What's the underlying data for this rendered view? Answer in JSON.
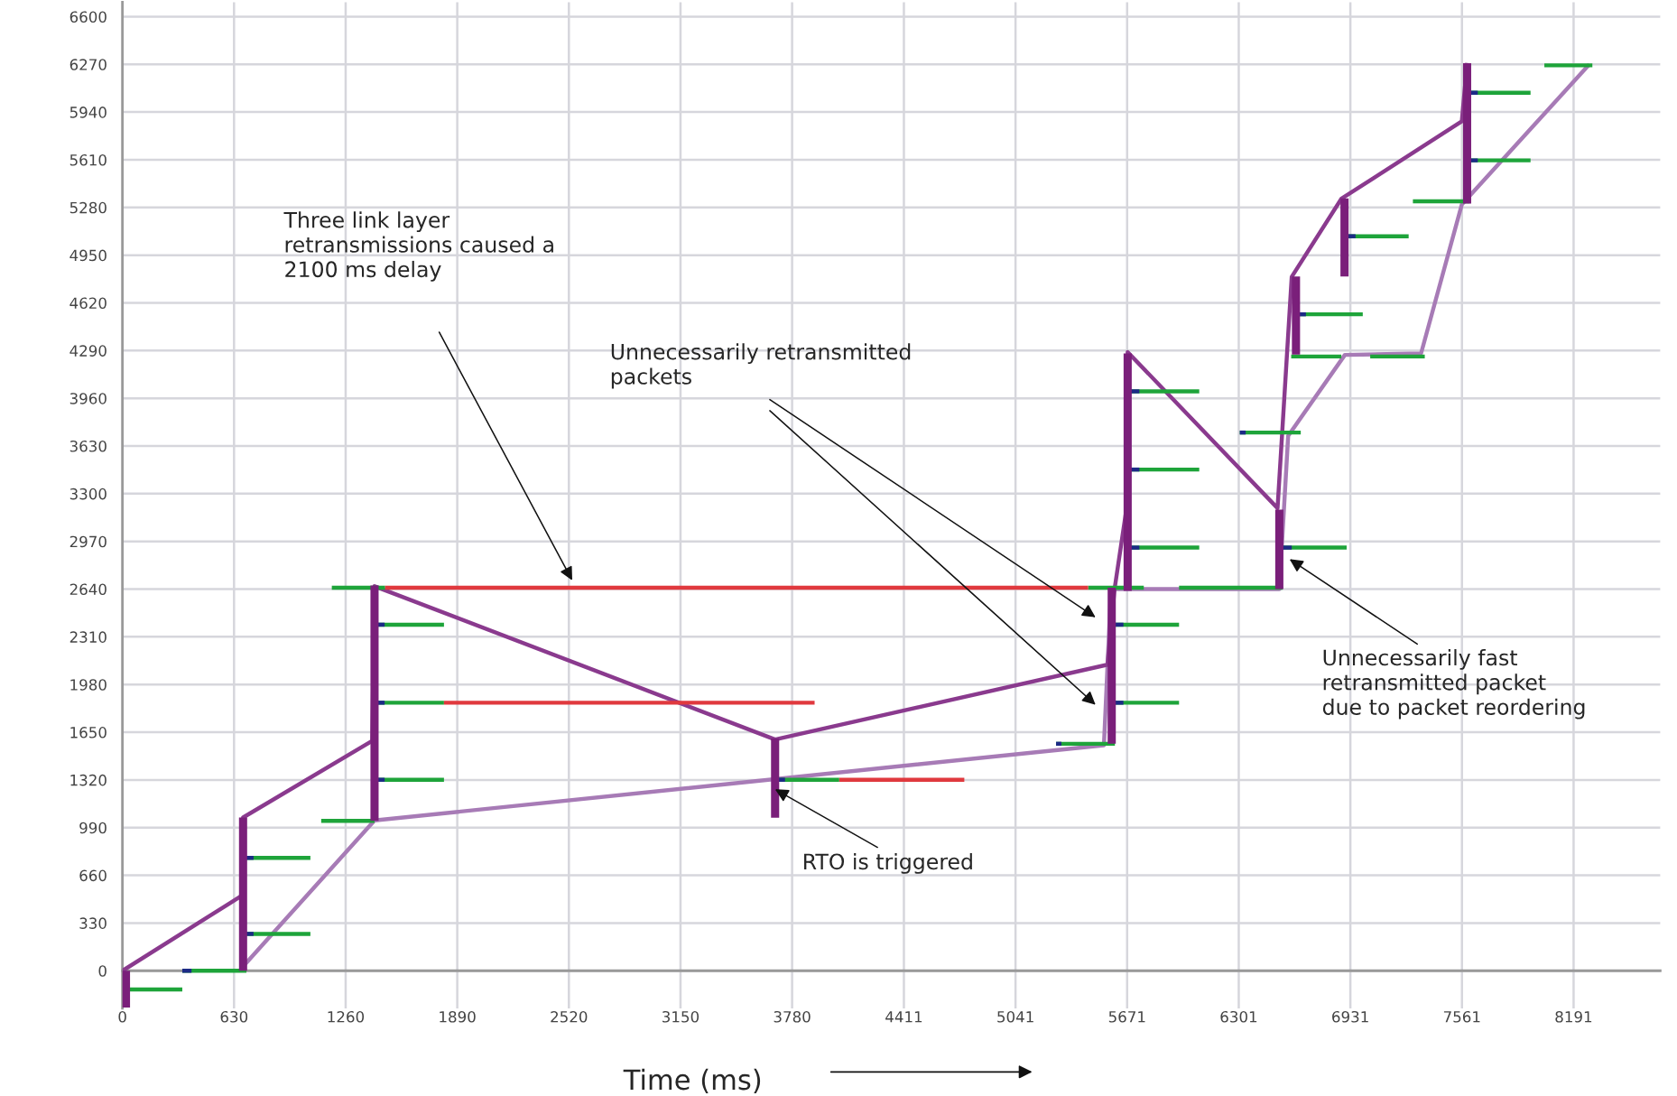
{
  "chart_data": {
    "type": "line",
    "xlabel": "Time (ms)",
    "xlim": [
      0,
      8680
    ],
    "ylim": [
      -260,
      6700
    ],
    "xticks": [
      0,
      630,
      1260,
      1890,
      2520,
      3150,
      3780,
      4411,
      5041,
      5671,
      6301,
      6931,
      7561,
      8191
    ],
    "yticks": [
      0,
      330,
      660,
      990,
      1320,
      1650,
      1980,
      2310,
      2640,
      2970,
      3300,
      3630,
      3960,
      4290,
      4620,
      4950,
      5280,
      5610,
      5940,
      6270,
      6600
    ],
    "grid": true,
    "series": [
      {
        "color": "#a77bb6",
        "x": [
          681,
          1423,
          5540,
          5580,
          6530,
          6580,
          6900,
          7330,
          7560,
          8280
        ],
        "values": [
          30,
          1040,
          1560,
          2640,
          2640,
          3700,
          4260,
          4270,
          5300,
          6270
        ]
      },
      {
        "color": "#8a3a8e",
        "x": [
          0,
          681,
          681,
          1410,
          1423,
          3684,
          5560,
          5600,
          5680,
          5674,
          6520,
          6600,
          6880,
          7560,
          7590
        ],
        "values": [
          0,
          525,
          1060,
          1590,
          2660,
          1600,
          2117,
          2640,
          3300,
          4280,
          3200,
          4800,
          5340,
          5876,
          6280
        ]
      },
      {
        "color": "#1ea43a",
        "x": [
          36,
          338
        ],
        "values": [
          -130,
          -130
        ]
      },
      {
        "color": "#1ea43a",
        "x": [
          338,
          700
        ],
        "values": [
          0,
          0
        ]
      },
      {
        "color": "#1ea43a",
        "x": [
          687,
          1061
        ],
        "values": [
          255,
          255
        ]
      },
      {
        "color": "#1ea43a",
        "x": [
          687,
          1061
        ],
        "values": [
          781,
          781
        ]
      },
      {
        "color": "#1ea43a",
        "x": [
          1122,
          1423
        ],
        "values": [
          1037,
          1037
        ]
      },
      {
        "color": "#1ea43a",
        "x": [
          1423,
          1815
        ],
        "values": [
          1321,
          1321
        ]
      },
      {
        "color": "#1ea43a",
        "x": [
          1423,
          1815
        ],
        "values": [
          1854,
          1854
        ]
      },
      {
        "color": "#1ea43a",
        "x": [
          1423,
          1815
        ],
        "values": [
          2394,
          2394
        ]
      },
      {
        "color": "#1ea43a",
        "x": [
          1182,
          1483
        ],
        "values": [
          2650,
          2650
        ]
      },
      {
        "color": "#1ea43a",
        "x": [
          3684,
          4046
        ],
        "values": [
          1321,
          1321
        ]
      },
      {
        "color": "#1ea43a",
        "x": [
          5270,
          5602
        ],
        "values": [
          1570,
          1570
        ]
      },
      {
        "color": "#1ea43a",
        "x": [
          5602,
          5964
        ],
        "values": [
          1854,
          1854
        ]
      },
      {
        "color": "#1ea43a",
        "x": [
          5602,
          5964
        ],
        "values": [
          2394,
          2394
        ]
      },
      {
        "color": "#1ea43a",
        "x": [
          5451,
          5765
        ],
        "values": [
          2650,
          2650
        ]
      },
      {
        "color": "#1ea43a",
        "x": [
          5964,
          6549
        ],
        "values": [
          2650,
          2650
        ]
      },
      {
        "color": "#1ea43a",
        "x": [
          5692,
          6078
        ],
        "values": [
          2927,
          2927
        ]
      },
      {
        "color": "#1ea43a",
        "x": [
          5692,
          6078
        ],
        "values": [
          3467,
          3467
        ]
      },
      {
        "color": "#1ea43a",
        "x": [
          5692,
          6078
        ],
        "values": [
          4008,
          4008
        ]
      },
      {
        "color": "#1ea43a",
        "x": [
          6541,
          6910
        ],
        "values": [
          2927,
          2927
        ]
      },
      {
        "color": "#1ea43a",
        "x": [
          6307,
          6651
        ],
        "values": [
          3723,
          3723
        ]
      },
      {
        "color": "#1ea43a",
        "x": [
          6597,
          6880
        ],
        "values": [
          4249,
          4249
        ]
      },
      {
        "color": "#1ea43a",
        "x": [
          7043,
          7351
        ],
        "values": [
          4249,
          4249
        ]
      },
      {
        "color": "#1ea43a",
        "x": [
          6627,
          7001
        ],
        "values": [
          4541,
          4541
        ]
      },
      {
        "color": "#1ea43a",
        "x": [
          6898,
          7260
        ],
        "values": [
          5081,
          5081
        ]
      },
      {
        "color": "#1ea43a",
        "x": [
          7284,
          7604
        ],
        "values": [
          5322,
          5322
        ]
      },
      {
        "color": "#1ea43a",
        "x": [
          7592,
          7948
        ],
        "values": [
          5606,
          5606
        ]
      },
      {
        "color": "#1ea43a",
        "x": [
          7592,
          7948
        ],
        "values": [
          6074,
          6074
        ]
      },
      {
        "color": "#1ea43a",
        "x": [
          8026,
          8297
        ],
        "values": [
          6263,
          6263
        ]
      },
      {
        "color": "#e0393e",
        "x": [
          1483,
          5451
        ],
        "values": [
          2650,
          2650
        ]
      },
      {
        "color": "#e0393e",
        "x": [
          1815,
          3907
        ],
        "values": [
          1854,
          1854
        ]
      },
      {
        "color": "#e0393e",
        "x": [
          4046,
          4752
        ],
        "values": [
          1321,
          1321
        ]
      },
      {
        "color": "#1c2a86",
        "x": [
          338,
          390
        ],
        "values": [
          0,
          0
        ]
      },
      {
        "color": "#1c2a86",
        "x": [
          687,
          740
        ],
        "values": [
          255,
          255
        ]
      },
      {
        "color": "#1c2a86",
        "x": [
          687,
          740
        ],
        "values": [
          781,
          781
        ]
      },
      {
        "color": "#1c2a86",
        "x": [
          1423,
          1480
        ],
        "values": [
          1321,
          1321
        ]
      },
      {
        "color": "#1c2a86",
        "x": [
          1423,
          1480
        ],
        "values": [
          1854,
          1854
        ]
      },
      {
        "color": "#1c2a86",
        "x": [
          1423,
          1480
        ],
        "values": [
          2394,
          2394
        ]
      },
      {
        "color": "#1c2a86",
        "x": [
          3684,
          3740
        ],
        "values": [
          1321,
          1321
        ]
      },
      {
        "color": "#1c2a86",
        "x": [
          5270,
          5300
        ],
        "values": [
          1570,
          1570
        ]
      },
      {
        "color": "#1c2a86",
        "x": [
          5602,
          5650
        ],
        "values": [
          1854,
          1854
        ]
      },
      {
        "color": "#1c2a86",
        "x": [
          5602,
          5650
        ],
        "values": [
          2394,
          2394
        ]
      },
      {
        "color": "#1c2a86",
        "x": [
          5692,
          5740
        ],
        "values": [
          2927,
          2927
        ]
      },
      {
        "color": "#1c2a86",
        "x": [
          5692,
          5740
        ],
        "values": [
          3467,
          3467
        ]
      },
      {
        "color": "#1c2a86",
        "x": [
          5692,
          5740
        ],
        "values": [
          4008,
          4008
        ]
      },
      {
        "color": "#1c2a86",
        "x": [
          6541,
          6600
        ],
        "values": [
          2927,
          2927
        ]
      },
      {
        "color": "#1c2a86",
        "x": [
          6307,
          6340
        ],
        "values": [
          3723,
          3723
        ]
      },
      {
        "color": "#1c2a86",
        "x": [
          6627,
          6680
        ],
        "values": [
          4541,
          4541
        ]
      },
      {
        "color": "#1c2a86",
        "x": [
          6898,
          6960
        ],
        "values": [
          5081,
          5081
        ]
      },
      {
        "color": "#1c2a86",
        "x": [
          7592,
          7650
        ],
        "values": [
          5606,
          5606
        ]
      },
      {
        "color": "#1c2a86",
        "x": [
          7592,
          7650
        ],
        "values": [
          6074,
          6074
        ]
      },
      {
        "color": "#7a1f7a",
        "x": [
          20,
          20
        ],
        "values": [
          0,
          -255
        ]
      },
      {
        "color": "#7a1f7a",
        "x": [
          681,
          681
        ],
        "values": [
          0,
          1060
        ]
      },
      {
        "color": "#7a1f7a",
        "x": [
          1423,
          1423
        ],
        "values": [
          1037,
          2665
        ]
      },
      {
        "color": "#7a1f7a",
        "x": [
          3684,
          3684
        ],
        "values": [
          1058,
          1606
        ]
      },
      {
        "color": "#7a1f7a",
        "x": [
          5584,
          5584
        ],
        "values": [
          1570,
          2650
        ]
      },
      {
        "color": "#7a1f7a",
        "x": [
          5674,
          5674
        ],
        "values": [
          2628,
          4270
        ]
      },
      {
        "color": "#7a1f7a",
        "x": [
          6530,
          6530
        ],
        "values": [
          2640,
          3190
        ]
      },
      {
        "color": "#7a1f7a",
        "x": [
          6624,
          6624
        ],
        "values": [
          4263,
          4803
        ]
      },
      {
        "color": "#7a1f7a",
        "x": [
          6898,
          6898
        ],
        "values": [
          4803,
          5343
        ]
      },
      {
        "color": "#7a1f7a",
        "x": [
          7590,
          7590
        ],
        "values": [
          5307,
          6278
        ]
      }
    ],
    "annotations": [
      "Three link layer\nretransmissions caused a\n2100 ms delay",
      "Unnecessarily retransmitted\npackets",
      {
        "text": "RTO is triggered",
        "x": 3684,
        "y": 1255
      },
      "Unnecessarily fast\nretransmitted packet\ndue to packet reordering"
    ]
  }
}
